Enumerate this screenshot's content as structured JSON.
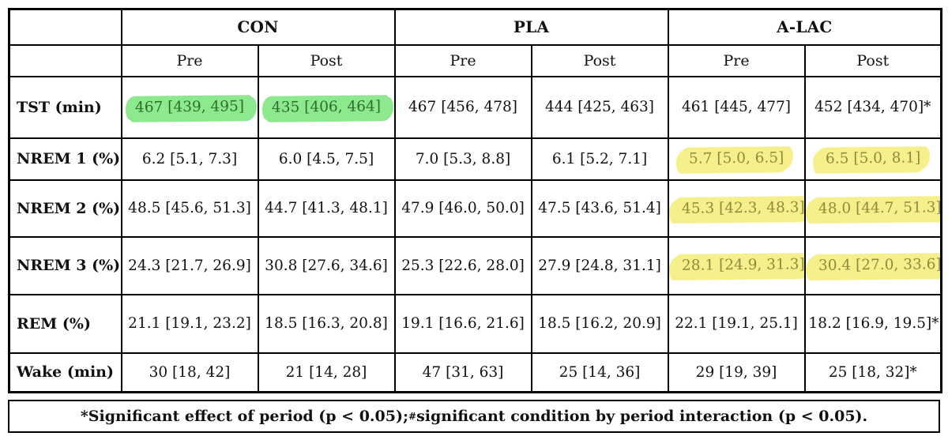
{
  "colors": {
    "border": "#000000",
    "green_highlight": "#8de98d",
    "green_text": "#2d6e2d",
    "yellow_highlight": "#f6f08c",
    "yellow_text": "#8e8b3d"
  },
  "table": {
    "groups": [
      {
        "label": "CON"
      },
      {
        "label": "PLA"
      },
      {
        "label": "A-LAC"
      }
    ],
    "sub_headers": [
      "Pre",
      "Post",
      "Pre",
      "Post",
      "Pre",
      "Post"
    ],
    "rows": [
      {
        "label": "TST (min)",
        "cells": [
          {
            "text": "467 [439, 495]",
            "sup": "",
            "highlight": "green"
          },
          {
            "text": "435 [406, 464]",
            "sup": "",
            "highlight": "green"
          },
          {
            "text": "467 [456, 478]",
            "sup": "",
            "highlight": ""
          },
          {
            "text": "444 [425, 463]",
            "sup": "",
            "highlight": ""
          },
          {
            "text": "461 [445, 477]",
            "sup": "",
            "highlight": ""
          },
          {
            "text": "452 [434, 470]",
            "sup": "*",
            "highlight": ""
          }
        ]
      },
      {
        "label": "NREM 1 (%)",
        "cells": [
          {
            "text": "6.2 [5.1, 7.3]",
            "sup": "",
            "highlight": ""
          },
          {
            "text": "6.0 [4.5, 7.5]",
            "sup": "",
            "highlight": ""
          },
          {
            "text": "7.0 [5.3, 8.8]",
            "sup": "",
            "highlight": ""
          },
          {
            "text": "6.1 [5.2, 7.1]",
            "sup": "",
            "highlight": ""
          },
          {
            "text": "5.7 [5.0, 6.5]",
            "sup": "",
            "highlight": "yellow"
          },
          {
            "text": "6.5 [5.0, 8.1]",
            "sup": "",
            "highlight": "yellow"
          }
        ]
      },
      {
        "label": "NREM 2 (%)",
        "cells": [
          {
            "text": "48.5 [45.6, 51.3]",
            "sup": "",
            "highlight": ""
          },
          {
            "text": "44.7 [41.3, 48.1]",
            "sup": "",
            "highlight": ""
          },
          {
            "text": "47.9 [46.0, 50.0]",
            "sup": "",
            "highlight": ""
          },
          {
            "text": "47.5 [43.6, 51.4]",
            "sup": "",
            "highlight": ""
          },
          {
            "text": "45.3 [42.3, 48.3]",
            "sup": "",
            "highlight": "yellow"
          },
          {
            "text": "48.0 [44.7, 51.3]",
            "sup": "#",
            "highlight": "yellow"
          }
        ]
      },
      {
        "label": "NREM 3 (%)",
        "cells": [
          {
            "text": "24.3 [21.7, 26.9]",
            "sup": "",
            "highlight": ""
          },
          {
            "text": "30.8 [27.6, 34.6]",
            "sup": "",
            "highlight": ""
          },
          {
            "text": "25.3 [22.6, 28.0]",
            "sup": "",
            "highlight": ""
          },
          {
            "text": "27.9 [24.8, 31.1]",
            "sup": "",
            "highlight": ""
          },
          {
            "text": "28.1 [24.9, 31.3]",
            "sup": "",
            "highlight": "yellow"
          },
          {
            "text": "30.4 [27.0, 33.6]",
            "sup": "#",
            "highlight": "yellow"
          }
        ]
      },
      {
        "label": "REM (%)",
        "cells": [
          {
            "text": "21.1 [19.1, 23.2]",
            "sup": "",
            "highlight": ""
          },
          {
            "text": "18.5 [16.3, 20.8]",
            "sup": "",
            "highlight": ""
          },
          {
            "text": "19.1 [16.6, 21.6]",
            "sup": "",
            "highlight": ""
          },
          {
            "text": "18.5 [16.2, 20.9]",
            "sup": "",
            "highlight": ""
          },
          {
            "text": "22.1 [19.1, 25.1]",
            "sup": "",
            "highlight": ""
          },
          {
            "text": "18.2 [16.9, 19.5]",
            "sup": "*",
            "highlight": ""
          }
        ]
      },
      {
        "label": "Wake (min)",
        "cells": [
          {
            "text": "30 [18, 42]",
            "sup": "",
            "highlight": ""
          },
          {
            "text": "21 [14, 28]",
            "sup": "",
            "highlight": ""
          },
          {
            "text": "47 [31, 63]",
            "sup": "",
            "highlight": ""
          },
          {
            "text": "25 [14, 36]",
            "sup": "",
            "highlight": ""
          },
          {
            "text": "29 [19, 39]",
            "sup": "",
            "highlight": ""
          },
          {
            "text": "25 [18, 32]",
            "sup": "*",
            "highlight": ""
          }
        ]
      }
    ]
  },
  "footnote": {
    "part1": "*Significant effect of period (p < 0.05); ",
    "sup": "#",
    "part2": "significant condition by period interaction (p < 0.05)."
  }
}
